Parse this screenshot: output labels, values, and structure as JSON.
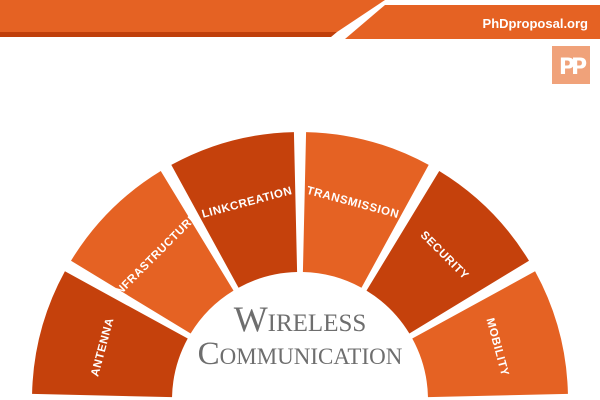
{
  "header": {
    "site": "PhDproposal.org",
    "logo": "PP"
  },
  "title": {
    "line1": "Wireless",
    "line2": "Communication"
  },
  "segments": [
    {
      "label": "ANTENNA",
      "color": "#c5410c"
    },
    {
      "label": "INFRASTRUCTURE",
      "color": "#e56223"
    },
    {
      "label": "LINKCREATION",
      "color": "#c5410c"
    },
    {
      "label": "TRANSMISSION",
      "color": "#e56223"
    },
    {
      "label": "SECURITY",
      "color": "#c5410c"
    },
    {
      "label": "MOBILITY",
      "color": "#e56223"
    }
  ],
  "colors": {
    "accent": "#e56223",
    "accent_dark": "#c5410c",
    "title_text": "#6e6e6e",
    "logo_bg": "#f0a27a"
  }
}
